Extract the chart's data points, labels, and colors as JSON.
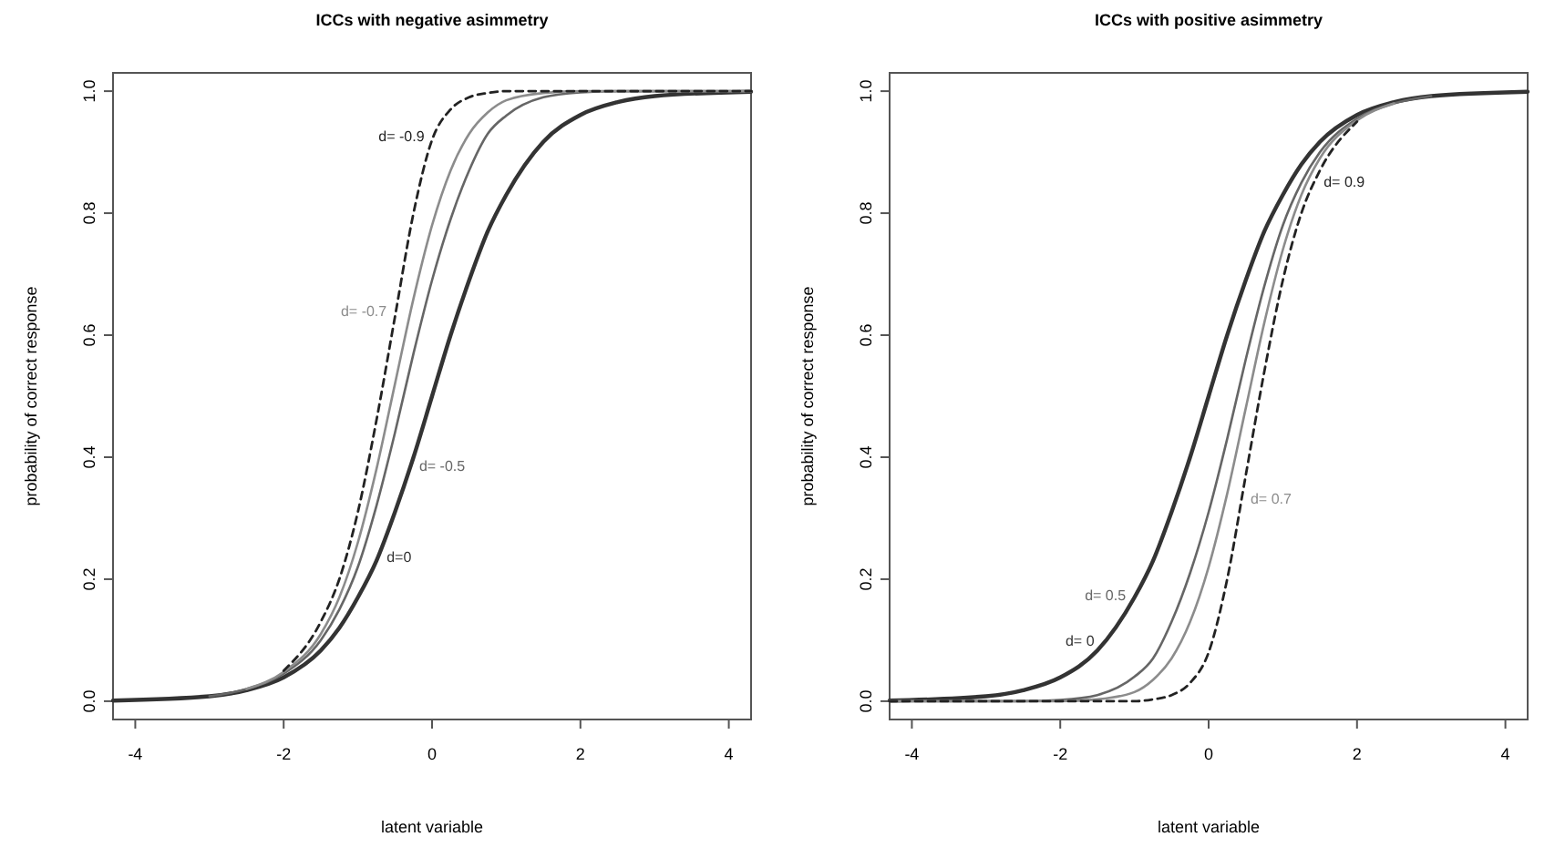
{
  "chart_data": [
    {
      "type": "line",
      "title": "ICCs with negative asimmetry",
      "xlabel": "latent variable",
      "ylabel": "probability of correct response",
      "xlim": [
        -4.3,
        4.3
      ],
      "ylim": [
        -0.03,
        1.03
      ],
      "xticks": [
        -4,
        -2,
        0,
        2,
        4
      ],
      "yticks": [
        {
          "value": 0,
          "label": "0.0"
        },
        {
          "value": 0.2,
          "label": "0.2"
        },
        {
          "value": 0.4,
          "label": "0.4"
        },
        {
          "value": 0.6,
          "label": "0.6"
        },
        {
          "value": 0.8,
          "label": "0.8"
        },
        {
          "value": 1,
          "label": "1.0"
        }
      ],
      "grid": false,
      "x": [
        -4.3,
        -3,
        -2.5,
        -2,
        -1.5,
        -1.25,
        -1,
        -0.75,
        -0.5,
        -0.25,
        0,
        0.25,
        0.5,
        0.75,
        1,
        1.5,
        2,
        2.5,
        3,
        4.3
      ],
      "series": [
        {
          "name": "d=0",
          "color": "#333333",
          "line_style": "solid",
          "values": [
            0.001,
            0.008,
            0.018,
            0.039,
            0.083,
            0.12,
            0.17,
            0.23,
            0.31,
            0.4,
            0.5,
            0.6,
            0.69,
            0.77,
            0.83,
            0.917,
            0.961,
            0.982,
            0.992,
            0.999
          ]
        },
        {
          "name": "d= -0.5",
          "color": "#666666",
          "line_style": "solid",
          "x": [
            -3,
            -2.5,
            -2,
            -1.5,
            -1.25,
            -1,
            -0.75,
            -0.5,
            -0.25,
            0,
            0.25,
            0.5,
            0.75,
            1,
            1.5,
            2,
            2.5,
            3,
            4.3
          ],
          "values": [
            0.008,
            0.02,
            0.045,
            0.1,
            0.15,
            0.22,
            0.32,
            0.44,
            0.57,
            0.69,
            0.79,
            0.87,
            0.93,
            0.96,
            0.99,
            0.998,
            1,
            1,
            1
          ]
        },
        {
          "name": "d= -0.7",
          "color": "#8c8c8c",
          "line_style": "solid",
          "x": [
            -2.5,
            -2,
            -1.5,
            -1.25,
            -1,
            -0.75,
            -0.5,
            -0.25,
            0,
            0.25,
            0.5,
            0.75,
            1,
            1.5,
            2,
            2.5,
            3,
            4.3
          ],
          "values": [
            0.02,
            0.048,
            0.11,
            0.17,
            0.26,
            0.38,
            0.52,
            0.66,
            0.78,
            0.87,
            0.93,
            0.965,
            0.985,
            0.997,
            1,
            1,
            1,
            1
          ]
        },
        {
          "name": "d= -0.9",
          "color": "#222222",
          "line_style": "dashed",
          "x": [
            -2,
            -1.5,
            -1.25,
            -1,
            -0.75,
            -0.5,
            -0.25,
            0,
            0.25,
            0.5,
            0.75,
            1,
            1.5,
            2,
            2.5,
            3,
            4.3
          ],
          "values": [
            0.05,
            0.13,
            0.2,
            0.31,
            0.46,
            0.63,
            0.8,
            0.92,
            0.97,
            0.99,
            0.997,
            1,
            1,
            1,
            1,
            1,
            1
          ]
        }
      ]
    },
    {
      "type": "line",
      "title": "ICCs with positive asimmetry",
      "xlabel": "latent variable",
      "ylabel": "probability of correct response",
      "xlim": [
        -4.3,
        4.3
      ],
      "ylim": [
        -0.03,
        1.03
      ],
      "xticks": [
        -4,
        -2,
        0,
        2,
        4
      ],
      "yticks": [
        {
          "value": 0,
          "label": "0.0"
        },
        {
          "value": 0.2,
          "label": "0.2"
        },
        {
          "value": 0.4,
          "label": "0.4"
        },
        {
          "value": 0.6,
          "label": "0.6"
        },
        {
          "value": 0.8,
          "label": "0.8"
        },
        {
          "value": 1,
          "label": "1.0"
        }
      ],
      "grid": false,
      "x": [
        -4.3,
        -3,
        -2.5,
        -2,
        -1.5,
        -1,
        -0.75,
        -0.5,
        -0.25,
        0,
        0.25,
        0.5,
        0.75,
        1,
        1.25,
        1.5,
        2,
        2.5,
        3,
        4.3
      ],
      "series": [
        {
          "name": "d= 0",
          "color": "#333333",
          "line_style": "solid",
          "values": [
            0.001,
            0.008,
            0.018,
            0.039,
            0.083,
            0.17,
            0.23,
            0.31,
            0.4,
            0.5,
            0.6,
            0.69,
            0.77,
            0.83,
            0.88,
            0.917,
            0.961,
            0.982,
            0.992,
            0.999
          ]
        },
        {
          "name": "d= 0.5",
          "color": "#666666",
          "line_style": "solid",
          "x": [
            -4.3,
            -3,
            -2.5,
            -2,
            -1.5,
            -1,
            -0.75,
            -0.5,
            -0.25,
            0,
            0.25,
            0.5,
            0.75,
            1,
            1.25,
            1.5,
            2,
            2.5,
            3
          ],
          "values": [
            0,
            0,
            0,
            0.002,
            0.01,
            0.04,
            0.07,
            0.13,
            0.21,
            0.31,
            0.43,
            0.56,
            0.68,
            0.78,
            0.85,
            0.9,
            0.955,
            0.98,
            0.992
          ]
        },
        {
          "name": "d= 0.7",
          "color": "#8c8c8c",
          "line_style": "solid",
          "x": [
            -4.3,
            -3,
            -2.5,
            -2,
            -1.5,
            -1,
            -0.75,
            -0.5,
            -0.25,
            0,
            0.25,
            0.5,
            0.75,
            1,
            1.25,
            1.5,
            2,
            2.5
          ],
          "values": [
            0,
            0,
            0,
            0,
            0.003,
            0.015,
            0.035,
            0.07,
            0.13,
            0.22,
            0.34,
            0.48,
            0.62,
            0.74,
            0.83,
            0.89,
            0.952,
            0.98
          ]
        },
        {
          "name": "d= 0.9",
          "color": "#222222",
          "line_style": "dashed",
          "x": [
            -4.3,
            -3,
            -2.5,
            -2,
            -1.5,
            -1,
            -0.75,
            -0.5,
            -0.25,
            0,
            0.25,
            0.5,
            0.75,
            1,
            1.25,
            1.5,
            2
          ],
          "values": [
            0,
            0,
            0,
            0,
            0,
            0,
            0.003,
            0.01,
            0.03,
            0.08,
            0.2,
            0.37,
            0.54,
            0.69,
            0.8,
            0.87,
            0.95
          ]
        }
      ]
    }
  ]
}
